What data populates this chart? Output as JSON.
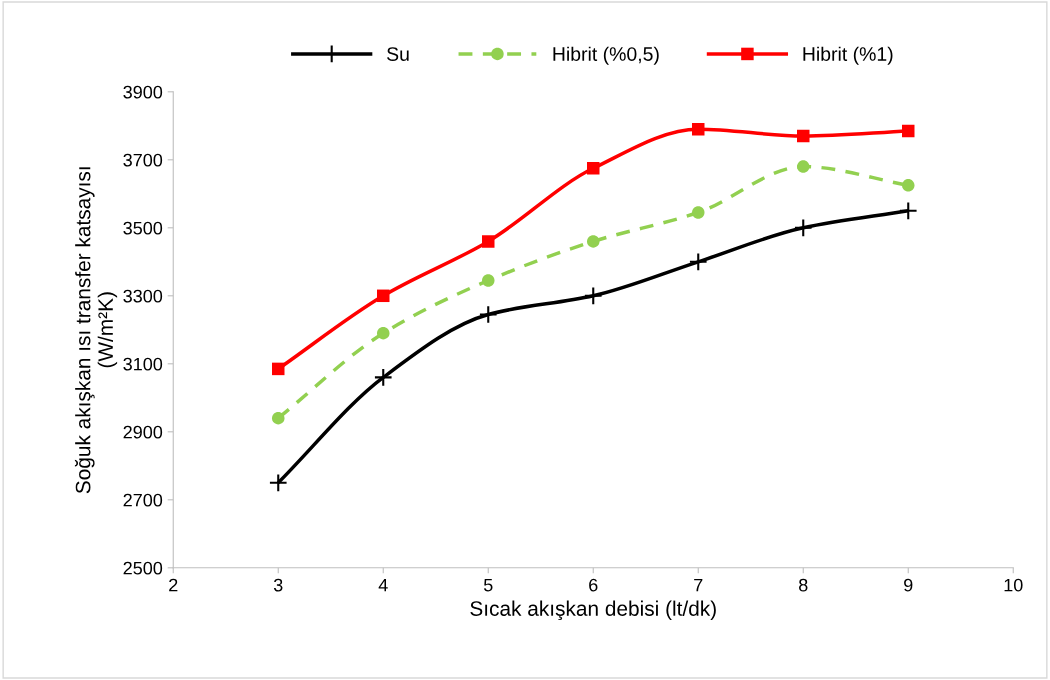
{
  "chart_data": {
    "type": "line",
    "xlabel": "Sıcak akışkan debisi (lt/dk)",
    "ylabel": "Soğuk akışkan ısı transfer katsayısı\n(W/m²K)",
    "x": [
      3,
      4,
      5,
      6,
      7,
      8,
      9
    ],
    "series": [
      {
        "name": "Su",
        "color": "#000000",
        "marker": "cross",
        "line_style": "solid",
        "values": [
          2750,
          3060,
          3245,
          3300,
          3400,
          3500,
          3550
        ]
      },
      {
        "name": "Hibrit (%0,5)",
        "color": "#92d050",
        "marker": "circle",
        "line_style": "dashed",
        "values": [
          2940,
          3190,
          3345,
          3460,
          3545,
          3680,
          3625
        ]
      },
      {
        "name": "Hibrit (%1)",
        "color": "#ff0000",
        "marker": "square",
        "line_style": "solid",
        "values": [
          3085,
          3300,
          3460,
          3675,
          3790,
          3770,
          3785
        ]
      }
    ],
    "xlim": [
      2,
      10
    ],
    "xticks": [
      2,
      3,
      4,
      5,
      6,
      7,
      8,
      9,
      10
    ],
    "ylim": [
      2500,
      3900
    ],
    "yticks": [
      2500,
      2700,
      2900,
      3100,
      3300,
      3500,
      3700,
      3900
    ],
    "grid": false,
    "legend": "top"
  }
}
